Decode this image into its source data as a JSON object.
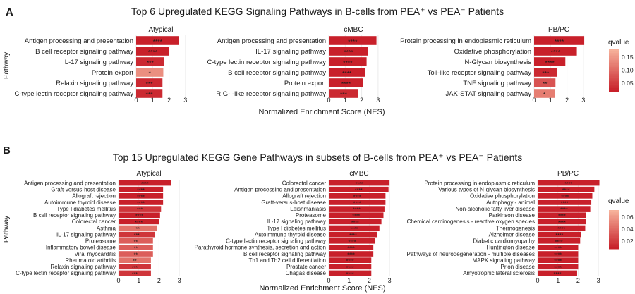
{
  "panels": [
    {
      "letter": "A",
      "title": "Top 6 Upregulated KEGG Signaling Pathways in B-cells from PEA⁺ vs PEA⁻ Patients",
      "ylabel": "Pathway",
      "xlabel": "Normalized Enrichment Score (NES)",
      "legend_title": "qvalue",
      "legend_ticks": [
        "0.15",
        "0.10",
        "0.05"
      ]
    },
    {
      "letter": "B",
      "title": "Top 15 Upregulated KEGG Gene Pathways in subsets of B-cells from PEA⁺ vs PEA⁻ Patients",
      "ylabel": "Pathway",
      "xlabel": "Normalized Enrichment Score (NES)",
      "legend_title": "qvalue",
      "legend_ticks": [
        "0.06",
        "0.04",
        "0.02"
      ]
    }
  ],
  "colors": {
    "low_q": "#c8202a",
    "high_q": "#f6b19a",
    "grid": "#ebebeb"
  },
  "chart_data": [
    {
      "type": "bar",
      "orientation": "horizontal",
      "panel": "A",
      "facet": "Atypical",
      "xlim": [
        0,
        3
      ],
      "xticks": [
        "0",
        "1",
        "2",
        "3"
      ],
      "categories": [
        "Antigen processing and presentation",
        "B cell receptor signaling pathway",
        "IL-17 signaling pathway",
        "Protein export",
        "Relaxin signaling pathway",
        "C-type lectin receptor signaling pathway"
      ],
      "values": [
        2.6,
        2.0,
        1.7,
        1.65,
        1.6,
        1.6
      ],
      "labels": [
        "****",
        "****",
        "***",
        "*",
        "***",
        "***"
      ],
      "qvalue": [
        0.0,
        0.0,
        0.01,
        0.13,
        0.01,
        0.01
      ]
    },
    {
      "type": "bar",
      "orientation": "horizontal",
      "panel": "A",
      "facet": "cMBC",
      "xlim": [
        0,
        3
      ],
      "xticks": [
        "0",
        "1",
        "2",
        "3"
      ],
      "categories": [
        "Antigen processing and presentation",
        "IL-17 signaling pathway",
        "C-type lectin receptor signaling pathway",
        "B cell receptor signaling pathway",
        "Protein export",
        "RIG-I-like receptor signaling pathway"
      ],
      "values": [
        2.9,
        2.4,
        2.3,
        2.2,
        2.1,
        1.8
      ],
      "labels": [
        "****",
        "****",
        "****",
        "****",
        "****",
        "***"
      ],
      "qvalue": [
        0.0,
        0.0,
        0.0,
        0.0,
        0.0,
        0.01
      ]
    },
    {
      "type": "bar",
      "orientation": "horizontal",
      "panel": "A",
      "facet": "PB/PC",
      "xlim": [
        0,
        3
      ],
      "xticks": [
        "0",
        "1",
        "2",
        "3"
      ],
      "categories": [
        "Protein processing in endoplasmic reticulum",
        "Oxidative phosphorylation",
        "N-Glycan biosynthesis",
        "Toll-like receptor signaling pathway",
        "TNF signaling pathway",
        "JAK-STAT signaling pathway"
      ],
      "values": [
        3.05,
        2.6,
        1.9,
        1.4,
        1.3,
        1.25
      ],
      "labels": [
        "****",
        "****",
        "****",
        "***",
        "**",
        "*"
      ],
      "qvalue": [
        0.0,
        0.0,
        0.0,
        0.01,
        0.06,
        0.11
      ]
    },
    {
      "type": "bar",
      "orientation": "horizontal",
      "panel": "B",
      "facet": "Atypical",
      "xlim": [
        0,
        3
      ],
      "xticks": [
        "0",
        "1",
        "2",
        "3"
      ],
      "categories": [
        "Antigen processing and presentation",
        "Graft-versus-host disease",
        "Allograft rejection",
        "Autoimmune thyroid disease",
        "Type I diabetes mellitus",
        "B cell receptor signaling pathway",
        "Colorectal cancer",
        "Asthma",
        "IL-17 signaling pathway",
        "Proteasome",
        "Inflammatory bowel disease",
        "Viral myocarditis",
        "Rheumatoid arthritis",
        "Relaxin signaling pathway",
        "C-type lectin receptor signaling pathway"
      ],
      "values": [
        2.6,
        2.2,
        2.2,
        2.2,
        2.1,
        2.05,
        2.0,
        1.9,
        1.8,
        1.7,
        1.7,
        1.7,
        1.6,
        1.6,
        1.6
      ],
      "labels": [
        "****",
        "****",
        "****",
        "****",
        "***",
        "****",
        "****",
        "**",
        "***",
        "**",
        "**",
        "**",
        "**",
        "***",
        "***"
      ],
      "qvalue": [
        0.0,
        0.0,
        0.0,
        0.0,
        0.01,
        0.0,
        0.0,
        0.04,
        0.01,
        0.03,
        0.03,
        0.03,
        0.04,
        0.01,
        0.01
      ]
    },
    {
      "type": "bar",
      "orientation": "horizontal",
      "panel": "B",
      "facet": "cMBC",
      "xlim": [
        0,
        3
      ],
      "xticks": [
        "0",
        "1",
        "2",
        "3"
      ],
      "categories": [
        "Colorectal cancer",
        "Antigen processing and presentation",
        "Allograft rejection",
        "Graft-versus-host disease",
        "Leishmaniasis",
        "Proteasome",
        "IL-17 signaling pathway",
        "Type I diabetes mellitus",
        "Autoimmune thyroid disease",
        "C-type lectin receptor signaling pathway",
        "Parathyroid hormone synthesis, secretion and action",
        "B cell receptor signaling pathway",
        "Th1 and Th2 cell differentiation",
        "Prostate cancer",
        "Chagas disease"
      ],
      "values": [
        3.0,
        2.95,
        2.8,
        2.8,
        2.75,
        2.7,
        2.6,
        2.5,
        2.4,
        2.3,
        2.2,
        2.2,
        2.1,
        2.1,
        2.1
      ],
      "labels": [
        "****",
        "****",
        "****",
        "****",
        "****",
        "****",
        "****",
        "****",
        "****",
        "****",
        "****",
        "****",
        "****",
        "****",
        "****"
      ],
      "qvalue": [
        0.0,
        0.0,
        0.0,
        0.0,
        0.0,
        0.0,
        0.0,
        0.0,
        0.0,
        0.0,
        0.0,
        0.0,
        0.0,
        0.0,
        0.0
      ]
    },
    {
      "type": "bar",
      "orientation": "horizontal",
      "panel": "B",
      "facet": "PB/PC",
      "xlim": [
        0,
        3
      ],
      "xticks": [
        "0",
        "1",
        "2",
        "3"
      ],
      "categories": [
        "Protein processing in endoplasmic reticulum",
        "Various types of N-glycan biosynthesis",
        "Oxidative phosphorylation",
        "Autophagy - animal",
        "Non-alcoholic fatty liver disease",
        "Parkinson disease",
        "Chemical carcinogenesis - reactive oxygen species",
        "Thermogenesis",
        "Alzheimer disease",
        "Diabetic cardiomyopathy",
        "Huntington disease",
        "Pathways of neurodegeneration - multiple diseases",
        "MAPK signaling pathway",
        "Prion disease",
        "Amyotrophic lateral sclerosis"
      ],
      "values": [
        3.05,
        2.8,
        2.7,
        2.65,
        2.6,
        2.4,
        2.4,
        2.35,
        2.15,
        2.1,
        2.0,
        2.0,
        2.0,
        2.0,
        1.95
      ],
      "labels": [
        "****",
        "****",
        "****",
        "****",
        "****",
        "****",
        "****",
        "****",
        "****",
        "****",
        "****",
        "****",
        "****",
        "****",
        "****"
      ],
      "qvalue": [
        0.0,
        0.0,
        0.0,
        0.0,
        0.0,
        0.0,
        0.0,
        0.0,
        0.0,
        0.0,
        0.0,
        0.0,
        0.0,
        0.0,
        0.0
      ]
    }
  ]
}
